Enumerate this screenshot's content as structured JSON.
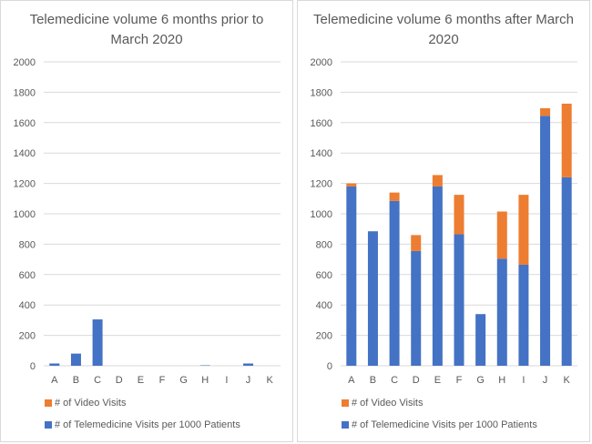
{
  "colors": {
    "telemedicine": "#4472c4",
    "video": "#ed7d31",
    "grid": "#d9d9d9",
    "text": "#595959"
  },
  "legend": {
    "video": "# of Video Visits",
    "telemedicine": "# of Telemedicine Visits per 1000 Patients"
  },
  "chart_data": [
    {
      "type": "bar",
      "stacked": true,
      "title": "Telemedicine volume 6 months prior to March 2020",
      "categories": [
        "A",
        "B",
        "C",
        "D",
        "E",
        "F",
        "G",
        "H",
        "I",
        "J",
        "K"
      ],
      "series": [
        {
          "name": "# of Telemedicine Visits per 1000 Patients",
          "values": [
            15,
            80,
            305,
            0,
            0,
            0,
            0,
            3,
            0,
            15,
            0
          ]
        },
        {
          "name": "# of Video Visits",
          "values": [
            0,
            0,
            0,
            0,
            0,
            0,
            0,
            0,
            0,
            0,
            0
          ]
        }
      ],
      "yticks": [
        "0",
        "200",
        "400",
        "600",
        "800",
        "1000",
        "1200",
        "1400",
        "1600",
        "1800",
        "2000"
      ],
      "ylim": [
        0,
        2000
      ],
      "grid": true,
      "legend_position": "bottom"
    },
    {
      "type": "bar",
      "stacked": true,
      "title": "Telemedicine volume 6 months after March 2020",
      "categories": [
        "A",
        "B",
        "C",
        "D",
        "E",
        "F",
        "G",
        "H",
        "I",
        "J",
        "K"
      ],
      "series": [
        {
          "name": "# of Telemedicine Visits per 1000 Patients",
          "values": [
            1180,
            885,
            1085,
            755,
            1180,
            865,
            340,
            705,
            665,
            1645,
            1240
          ]
        },
        {
          "name": "# of Video Visits",
          "values": [
            20,
            0,
            55,
            105,
            75,
            260,
            0,
            310,
            460,
            50,
            485
          ]
        }
      ],
      "yticks": [
        "0",
        "200",
        "400",
        "600",
        "800",
        "1000",
        "1200",
        "1400",
        "1600",
        "1800",
        "2000"
      ],
      "ylim": [
        0,
        2000
      ],
      "grid": true,
      "legend_position": "bottom"
    }
  ]
}
